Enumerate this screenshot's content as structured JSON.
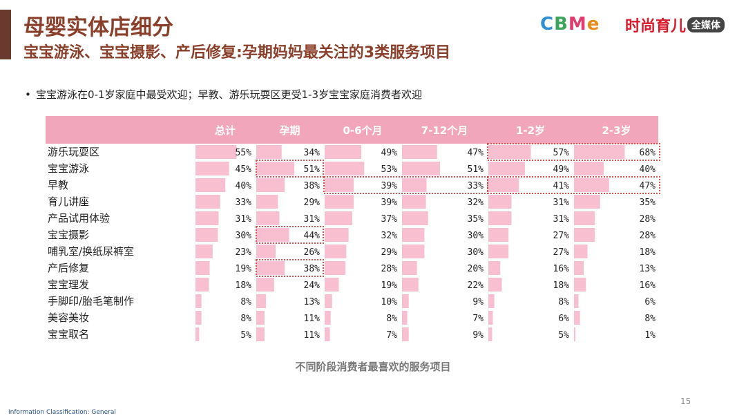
{
  "header": {
    "title": "母婴实体店细分",
    "subtitle": "宝宝游泳、宝宝摄影、产后修复:孕期妈妈最关注的3类服务项目"
  },
  "logos": {
    "cbme": [
      "C",
      "B",
      "M",
      "e"
    ],
    "cbme_colors": [
      "#2d8fd5",
      "#3aa55a",
      "#e23b6d",
      "#e88a1a"
    ],
    "fashion_main": "时尚育儿",
    "fashion_tag": "全媒体"
  },
  "bullet": {
    "marker": "•",
    "text": "宝宝游泳在0-1岁家庭中最受欢迎；早教、游乐玩耍区更受1-3岁宝宝家庭消费者欢迎"
  },
  "chart_data": {
    "type": "table",
    "columns": [
      "总计",
      "孕期",
      "0-6个月",
      "7-12个月",
      "1-2岁",
      "2-3岁"
    ],
    "rows": [
      "游乐玩耍区",
      "宝宝游泳",
      "早教",
      "育儿讲座",
      "产品试用体验",
      "宝宝摄影",
      "哺乳室/换纸尿裤室",
      "产后修复",
      "宝宝理发",
      "手脚印/胎毛笔制作",
      "美容美妆",
      "宝宝取名"
    ],
    "values": [
      [
        55,
        34,
        49,
        47,
        57,
        68
      ],
      [
        45,
        51,
        53,
        51,
        49,
        40
      ],
      [
        40,
        38,
        39,
        33,
        41,
        47
      ],
      [
        33,
        29,
        39,
        32,
        31,
        35
      ],
      [
        31,
        31,
        37,
        35,
        31,
        28
      ],
      [
        30,
        44,
        32,
        30,
        27,
        28
      ],
      [
        23,
        26,
        29,
        30,
        27,
        18
      ],
      [
        19,
        38,
        28,
        20,
        16,
        13
      ],
      [
        18,
        24,
        19,
        22,
        18,
        16
      ],
      [
        8,
        13,
        10,
        9,
        8,
        6
      ],
      [
        8,
        11,
        8,
        7,
        6,
        8
      ],
      [
        5,
        11,
        7,
        9,
        5,
        1
      ]
    ],
    "unit": "%",
    "highlights": [
      {
        "row": 0,
        "cols": [
          4,
          5
        ]
      },
      {
        "row": 2,
        "cols": [
          2,
          3
        ]
      },
      {
        "row": 2,
        "cols": [
          4,
          5
        ]
      },
      {
        "row": 1,
        "cols": [
          1
        ]
      },
      {
        "row": 5,
        "cols": [
          1
        ]
      },
      {
        "row": 7,
        "cols": [
          1
        ]
      }
    ],
    "colors": {
      "header_bg": "#f2a6bc",
      "header_text": "#ffffff",
      "bar": "#f7bfd0",
      "highlight": "#d9534f"
    }
  },
  "caption": "不同阶段消费者最喜欢的服务项目",
  "page_number": "15",
  "footer": "Information Classification: General"
}
